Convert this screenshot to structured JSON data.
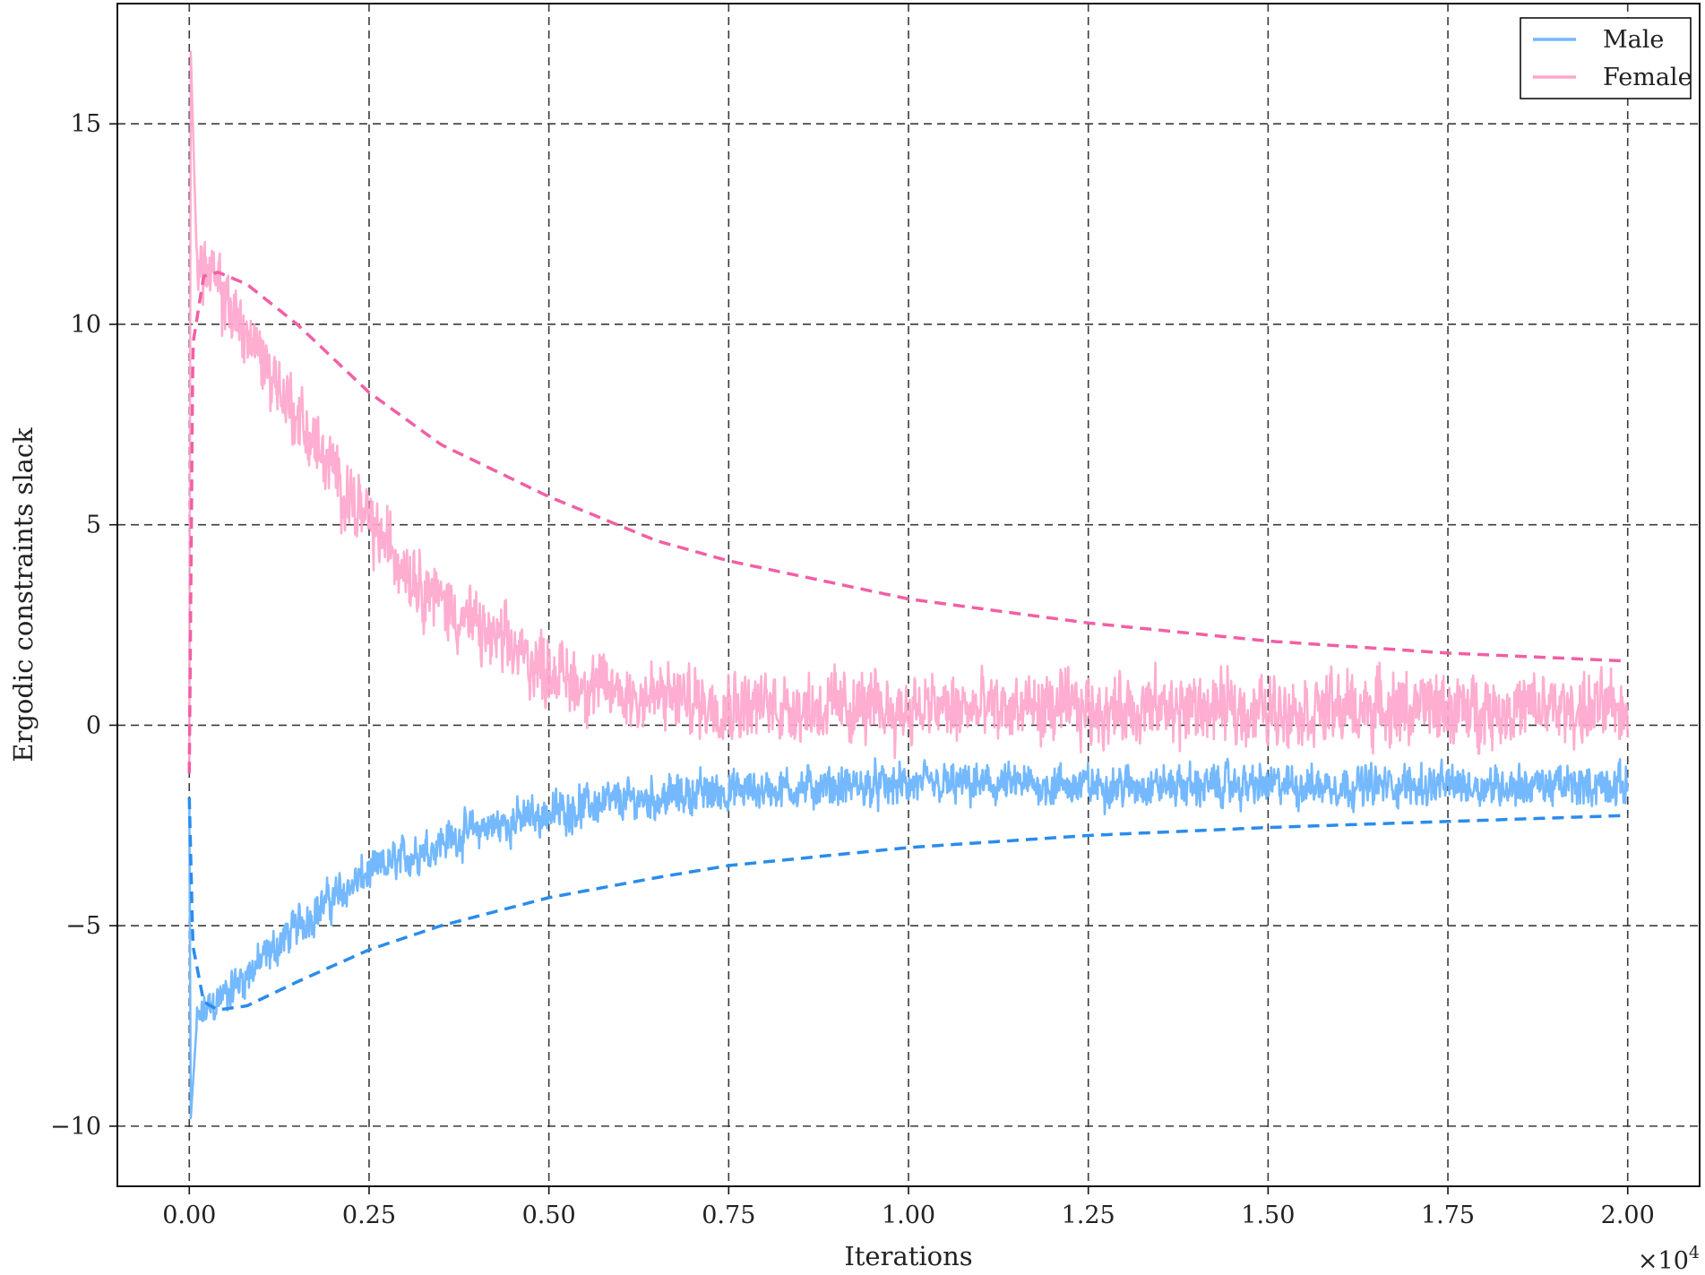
{
  "chart_data": {
    "type": "line",
    "title": "",
    "xlabel": "Iterations",
    "ylabel": "Ergodic constraints slack",
    "x_multiplier_label": "×10",
    "x_multiplier_exp": "4",
    "xlim": [
      -0.1,
      2.1
    ],
    "ylim": [
      -11.5,
      18.0
    ],
    "x_ticks": [
      0.0,
      0.25,
      0.5,
      0.75,
      1.0,
      1.25,
      1.5,
      1.75,
      2.0
    ],
    "x_tick_labels": [
      "0.00",
      "0.25",
      "0.50",
      "0.75",
      "1.00",
      "1.25",
      "1.50",
      "1.75",
      "2.00"
    ],
    "y_ticks": [
      -10,
      -5,
      0,
      5,
      10,
      15
    ],
    "y_tick_labels": [
      "−10",
      "−5",
      "0",
      "5",
      "10",
      "15"
    ],
    "grid": true,
    "legend_position": "top-right",
    "legend": [
      {
        "label": "Male",
        "color": "#74b9ff"
      },
      {
        "label": "Female",
        "color": "#ffa6cc"
      }
    ],
    "series": [
      {
        "name": "Male",
        "style": "noisy",
        "color": "#74b9ff",
        "x": [
          0.0,
          0.002,
          0.01,
          0.02,
          0.05,
          0.1,
          0.15,
          0.2,
          0.25,
          0.3,
          0.35,
          0.4,
          0.45,
          0.5,
          0.55,
          0.6,
          0.7,
          0.8,
          0.9,
          1.0,
          1.1,
          1.2,
          1.3,
          1.4,
          1.5,
          1.6,
          1.7,
          1.8,
          1.9,
          2.0
        ],
        "y": [
          -1.8,
          -9.8,
          -7.5,
          -7.2,
          -6.7,
          -5.9,
          -5.0,
          -4.3,
          -3.7,
          -3.3,
          -2.9,
          -2.6,
          -2.4,
          -2.2,
          -2.0,
          -1.9,
          -1.7,
          -1.6,
          -1.55,
          -1.5,
          -1.5,
          -1.5,
          -1.5,
          -1.5,
          -1.5,
          -1.5,
          -1.5,
          -1.5,
          -1.5,
          -1.5
        ],
        "noise_amplitude": 0.55
      },
      {
        "name": "Female",
        "style": "noisy",
        "color": "#ffa6cc",
        "x": [
          0.0,
          0.002,
          0.01,
          0.02,
          0.05,
          0.1,
          0.15,
          0.2,
          0.25,
          0.3,
          0.35,
          0.4,
          0.45,
          0.5,
          0.55,
          0.6,
          0.7,
          0.8,
          0.9,
          1.0,
          1.1,
          1.2,
          1.3,
          1.4,
          1.5,
          1.6,
          1.7,
          1.8,
          1.9,
          2.0
        ],
        "y": [
          -1.2,
          16.8,
          11.8,
          11.4,
          10.6,
          9.2,
          7.7,
          6.3,
          5.0,
          4.0,
          3.1,
          2.4,
          1.9,
          1.4,
          1.0,
          0.8,
          0.6,
          0.5,
          0.45,
          0.4,
          0.4,
          0.4,
          0.4,
          0.4,
          0.4,
          0.4,
          0.4,
          0.4,
          0.4,
          0.4
        ],
        "noise_amplitude": 0.95
      },
      {
        "name": "",
        "style": "dashed",
        "color": "#2a8cec",
        "x": [
          0.0,
          0.005,
          0.02,
          0.04,
          0.08,
          0.15,
          0.25,
          0.35,
          0.5,
          0.65,
          0.75,
          1.0,
          1.25,
          1.5,
          1.75,
          2.0
        ],
        "y": [
          -1.8,
          -5.5,
          -6.9,
          -7.1,
          -7.0,
          -6.4,
          -5.6,
          -5.0,
          -4.3,
          -3.8,
          -3.5,
          -3.05,
          -2.75,
          -2.55,
          -2.4,
          -2.25
        ]
      },
      {
        "name": "",
        "style": "dashed",
        "color": "#f25fa5",
        "x": [
          0.0,
          0.005,
          0.02,
          0.04,
          0.08,
          0.15,
          0.25,
          0.35,
          0.5,
          0.65,
          0.75,
          1.0,
          1.25,
          1.5,
          1.75,
          2.0
        ],
        "y": [
          -1.2,
          9.5,
          11.2,
          11.3,
          11.0,
          10.0,
          8.3,
          7.0,
          5.7,
          4.6,
          4.1,
          3.15,
          2.55,
          2.1,
          1.8,
          1.6
        ]
      }
    ]
  }
}
